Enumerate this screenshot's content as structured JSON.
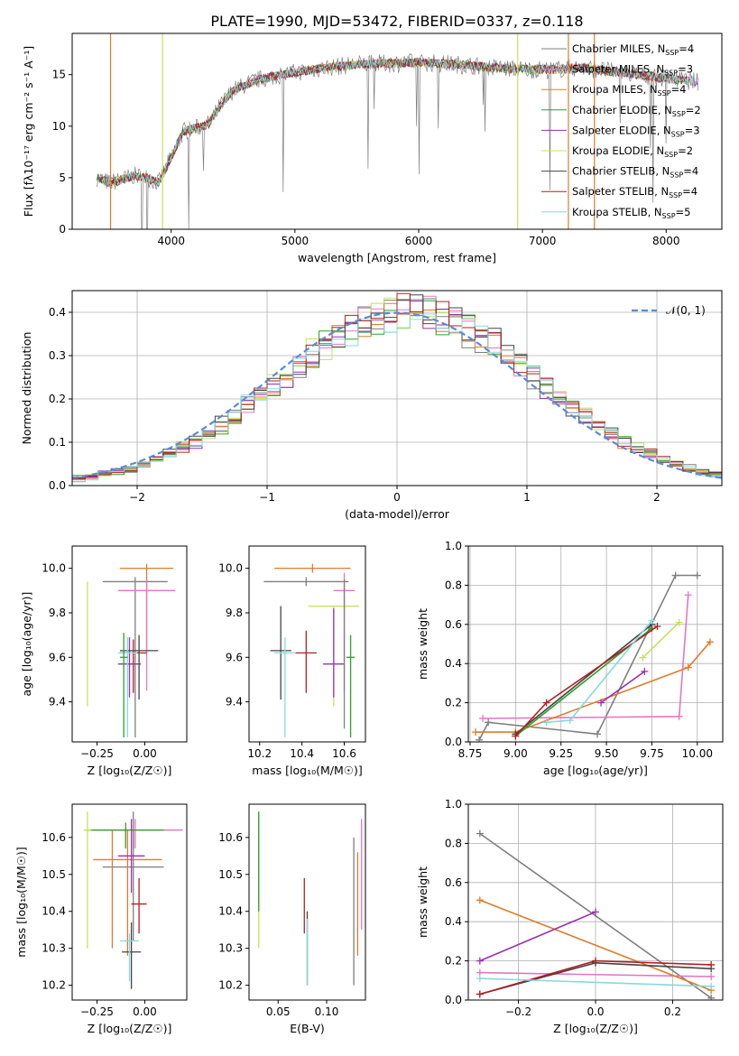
{
  "title": "PLATE=1990, MJD=53472, FIBERID=0337, z=0.118",
  "models": [
    {
      "label": "Chabrier MILES, N<sub>SSP</sub>=4",
      "text": "Chabrier MILES, N_SSP=4",
      "color": "#7f7f7f"
    },
    {
      "label": "Salpeter MILES, N_SSP=3",
      "text": "Salpeter MILES, N_SSP=3",
      "color": "#e377c2"
    },
    {
      "label": "Kroupa MILES, N_SSP=4",
      "text": "Kroupa MILES, N_SSP=4",
      "color": "#e07b2a"
    },
    {
      "label": "Chabrier ELODIE, N_SSP=2",
      "text": "Chabrier ELODIE, N_SSP=2",
      "color": "#2ca02c"
    },
    {
      "label": "Salpeter ELODIE, N_SSP=3",
      "text": "Salpeter ELODIE, N_SSP=3",
      "color": "#9b2fae"
    },
    {
      "label": "Kroupa ELODIE, N_SSP=2",
      "text": "Kroupa ELODIE, N_SSP=2",
      "color": "#c8e05a"
    },
    {
      "label": "Chabrier STELIB, N_SSP=4",
      "text": "Chabrier STELIB, N_SSP=4",
      "color": "#444444"
    },
    {
      "label": "Salpeter STELIB, N_SSP=4",
      "text": "Salpeter STELIB, N_SSP=4",
      "color": "#b22020"
    },
    {
      "label": "Kroupa STELIB, N_SSP=5",
      "text": "Kroupa STELIB, N_SSP=5",
      "color": "#88d8e0"
    }
  ],
  "chart_data": [
    {
      "type": "line",
      "name": "spectrum",
      "xlabel": "wavelength [Angstrom, rest frame]",
      "ylabel": "Flux [f_λ10^-17 erg cm^-2 s^-1 A^-1]",
      "xlim": [
        3200,
        8450
      ],
      "ylim": [
        0,
        19
      ],
      "xticks": [
        4000,
        5000,
        6000,
        7000,
        8000
      ],
      "yticks": [
        0,
        5,
        10,
        15
      ],
      "x_anchor": [
        3400,
        3500,
        3600,
        3700,
        3800,
        3900,
        4000,
        4100,
        4200,
        4300,
        4400,
        4500,
        4700,
        4900,
        5000,
        5200,
        5500,
        5800,
        6000,
        6300,
        6500,
        6700,
        6900,
        7100,
        7300,
        7500,
        7700,
        7900,
        8100,
        8250
      ],
      "y_anchor": [
        5.0,
        4.5,
        4.8,
        5.2,
        5.0,
        4.5,
        7.0,
        9.5,
        9.8,
        10.2,
        12.0,
        13.5,
        14.5,
        15.0,
        15.2,
        15.6,
        16.0,
        16.1,
        16.2,
        16.0,
        15.8,
        15.6,
        15.5,
        15.5,
        15.7,
        15.4,
        15.1,
        14.8,
        14.5,
        14.3
      ],
      "grid": false,
      "legend": "upper right"
    },
    {
      "type": "line",
      "name": "residual histogram",
      "xlabel": "(data-model)/error",
      "ylabel": "Normed distribution",
      "xlim": [
        -2.5,
        2.5
      ],
      "ylim": [
        0,
        0.45
      ],
      "xticks": [
        -2,
        -1,
        0,
        1,
        2
      ],
      "yticks": [
        0.0,
        0.1,
        0.2,
        0.3,
        0.4
      ],
      "reference": "N(0,1)",
      "grid": true,
      "legend": "upper right"
    },
    {
      "type": "scatter",
      "name": "age vs metallicity",
      "xlabel": "Z [log10(Z/Z_sun)]",
      "ylabel": "age [log10(age/yr)]",
      "xlim": [
        -0.38,
        0.22
      ],
      "ylim": [
        9.22,
        10.1
      ],
      "xticks": [
        -0.25,
        0.0
      ],
      "yticks": [
        9.4,
        9.6,
        9.8,
        10.0
      ],
      "points": [
        {
          "x": 0.01,
          "xerr": 0.14,
          "y": 10.0,
          "yerr_lo": 0.38,
          "yerr_hi": 0.02,
          "model": 2
        },
        {
          "x": -0.05,
          "xerr": 0.17,
          "y": 9.94,
          "yerr_lo": 0.7,
          "yerr_hi": 0.02,
          "model": 0
        },
        {
          "x": 0.01,
          "xerr": 0.15,
          "y": 9.9,
          "yerr_lo": 0.45,
          "yerr_hi": 0.05,
          "model": 1
        },
        {
          "x": -0.3,
          "xerr": 0.0,
          "y": 9.83,
          "yerr_lo": 0.45,
          "yerr_hi": 0.11,
          "model": 5
        },
        {
          "x": -0.08,
          "xerr": 0.06,
          "y": 9.57,
          "yerr_lo": 0.15,
          "yerr_hi": 0.12,
          "model": 4
        },
        {
          "x": -0.03,
          "xerr": 0.1,
          "y": 9.63,
          "yerr_lo": 0.22,
          "yerr_hi": 0.07,
          "model": 6
        },
        {
          "x": -0.06,
          "xerr": 0.07,
          "y": 9.62,
          "yerr_lo": 0.18,
          "yerr_hi": 0.06,
          "model": 7
        },
        {
          "x": -0.09,
          "xerr": 0.05,
          "y": 9.62,
          "yerr_lo": 0.38,
          "yerr_hi": 0.07,
          "model": 8
        },
        {
          "x": -0.11,
          "xerr": 0.02,
          "y": 9.6,
          "yerr_lo": 0.36,
          "yerr_hi": 0.11,
          "model": 3
        }
      ]
    },
    {
      "type": "scatter",
      "name": "age vs mass",
      "xlabel": "mass [log10(M/M_sun)]",
      "ylabel": "",
      "xlim": [
        10.15,
        10.7
      ],
      "ylim": [
        9.22,
        10.1
      ],
      "xticks": [
        10.2,
        10.4,
        10.6
      ],
      "yticks": [
        9.4,
        9.6,
        9.8,
        10.0
      ]
    },
    {
      "type": "line",
      "name": "mass weight vs age",
      "xlabel": "age [log10(age/yr)]",
      "ylabel": "mass weight",
      "xlim": [
        8.74,
        10.14
      ],
      "ylim": [
        0,
        1
      ],
      "xticks": [
        8.75,
        9.0,
        9.25,
        9.5,
        9.75,
        10.0
      ],
      "yticks": [
        0.0,
        0.2,
        0.4,
        0.6,
        0.8,
        1.0
      ],
      "grid": true,
      "series": [
        {
          "model": 0,
          "x": [
            8.8,
            8.85,
            9.45,
            9.88,
            10.0
          ],
          "y": [
            0.01,
            0.1,
            0.04,
            0.85,
            0.85
          ]
        },
        {
          "model": 1,
          "x": [
            8.82,
            9.9,
            9.95
          ],
          "y": [
            0.12,
            0.13,
            0.75
          ]
        },
        {
          "model": 2,
          "x": [
            8.78,
            9.0,
            9.95,
            10.07
          ],
          "y": [
            0.05,
            0.05,
            0.38,
            0.51
          ]
        },
        {
          "model": 3,
          "x": [
            9.0,
            9.75
          ],
          "y": [
            0.03,
            0.58
          ]
        },
        {
          "model": 4,
          "x": [
            9.47,
            9.71
          ],
          "y": [
            0.2,
            0.36
          ]
        },
        {
          "model": 5,
          "x": [
            9.7,
            9.9
          ],
          "y": [
            0.43,
            0.61
          ]
        },
        {
          "model": 6,
          "x": [
            9.0,
            9.75
          ],
          "y": [
            0.04,
            0.6
          ]
        },
        {
          "model": 7,
          "x": [
            9.0,
            9.17,
            9.78
          ],
          "y": [
            0.03,
            0.2,
            0.59
          ]
        },
        {
          "model": 8,
          "x": [
            9.17,
            9.3,
            9.75
          ],
          "y": [
            0.1,
            0.11,
            0.62
          ]
        }
      ]
    },
    {
      "type": "scatter",
      "name": "mass vs metallicity",
      "xlabel": "Z [log10(Z/Z_sun)]",
      "ylabel": "mass [log10(M/M_sun)]",
      "xlim": [
        -0.38,
        0.22
      ],
      "ylim": [
        10.16,
        10.69
      ],
      "xticks": [
        -0.25,
        0.0
      ],
      "yticks": [
        10.2,
        10.3,
        10.4,
        10.5,
        10.6
      ]
    },
    {
      "type": "scatter",
      "name": "mass vs extinction",
      "xlabel": "E(B-V)",
      "ylabel": "",
      "xlim": [
        0.02,
        0.14
      ],
      "ylim": [
        10.16,
        10.69
      ],
      "xticks": [
        0.05,
        0.1
      ],
      "yticks": [
        10.2,
        10.3,
        10.4,
        10.5,
        10.6
      ]
    },
    {
      "type": "line",
      "name": "mass weight vs metallicity",
      "xlabel": "Z [log10(Z/Z_sun)]",
      "ylabel": "mass weight",
      "xlim": [
        -0.33,
        0.33
      ],
      "ylim": [
        0,
        1
      ],
      "xticks": [
        -0.2,
        0.0,
        0.2
      ],
      "yticks": [
        0.0,
        0.2,
        0.4,
        0.6,
        0.8,
        1.0
      ],
      "grid": true,
      "series": [
        {
          "model": 0,
          "x": [
            -0.3,
            0.3
          ],
          "y": [
            0.85,
            0.01
          ]
        },
        {
          "model": 1,
          "x": [
            -0.3,
            0.3
          ],
          "y": [
            0.14,
            0.12
          ]
        },
        {
          "model": 2,
          "x": [
            -0.3,
            0.3
          ],
          "y": [
            0.51,
            0.05
          ]
        },
        {
          "model": 4,
          "x": [
            -0.3,
            0.0
          ],
          "y": [
            0.2,
            0.45
          ]
        },
        {
          "model": 6,
          "x": [
            -0.3,
            0.0,
            0.3
          ],
          "y": [
            0.03,
            0.19,
            0.16
          ]
        },
        {
          "model": 7,
          "x": [
            -0.3,
            0.0,
            0.3
          ],
          "y": [
            0.03,
            0.2,
            0.18
          ]
        },
        {
          "model": 8,
          "x": [
            -0.3,
            0.3
          ],
          "y": [
            0.11,
            0.07
          ]
        }
      ]
    }
  ]
}
